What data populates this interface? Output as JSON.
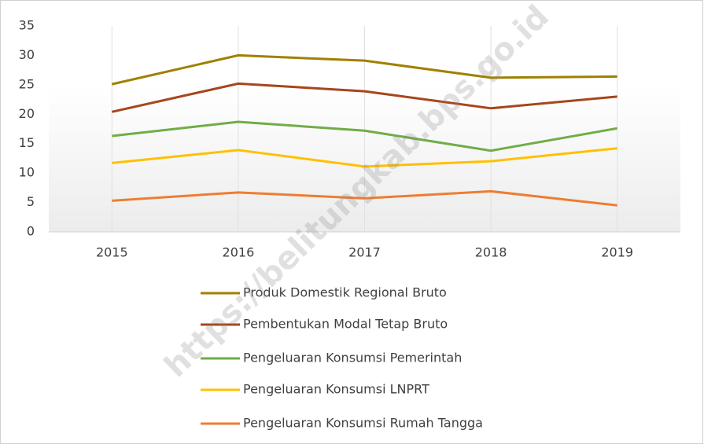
{
  "chart_data": {
    "type": "line",
    "watermark": "https://belitungkab.bps.go.id",
    "categories": [
      "2015",
      "2016",
      "2017",
      "2018",
      "2019"
    ],
    "series": [
      {
        "name": "Produk Domestik Regional Bruto",
        "color": "#a08000",
        "values": [
          25.1,
          30,
          29.1,
          26.2,
          26.4
        ]
      },
      {
        "name": "Pembentukan Modal Tetap Bruto",
        "color": "#a5461e",
        "values": [
          20.4,
          25.2,
          23.9,
          21,
          23
        ]
      },
      {
        "name": "Pengeluaran Konsumsi Pemerintah",
        "color": "#70ad47",
        "values": [
          16.3,
          18.7,
          17.2,
          13.8,
          17.6
        ]
      },
      {
        "name": "Pengeluaran Konsumsi LNPRT",
        "color": "#ffc000",
        "values": [
          11.7,
          13.9,
          11.1,
          12,
          14.2
        ]
      },
      {
        "name": "Pengeluaran Konsumsi Rumah Tangga",
        "color": "#ed7d31",
        "values": [
          5.3,
          6.7,
          5.7,
          6.9,
          4.5
        ]
      }
    ],
    "ylim": [
      0,
      35
    ],
    "yticks": [
      0,
      5,
      10,
      15,
      20,
      25,
      30,
      35
    ],
    "grid": true
  }
}
